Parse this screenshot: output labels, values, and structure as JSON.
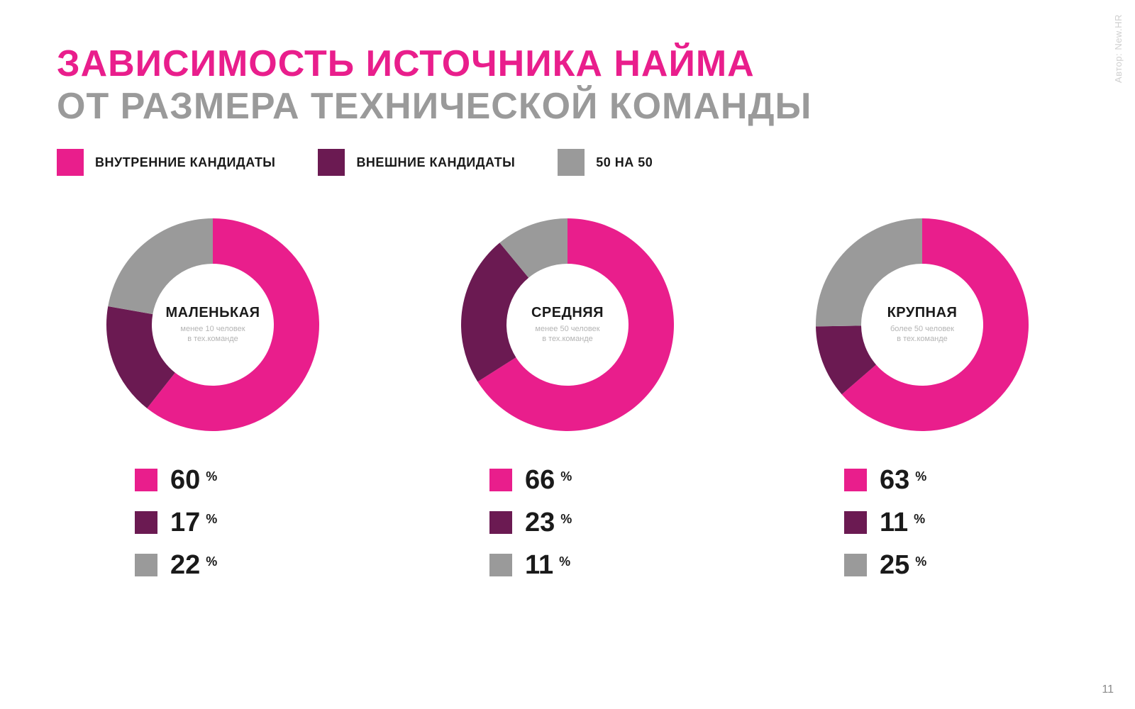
{
  "title": {
    "line1": "ЗАВИСИМОСТЬ ИСТОЧНИКА НАЙМА",
    "line2": "ОТ РАЗМЕРА ТЕХНИЧЕСКОЙ КОМАНДЫ",
    "line1_color": "#e91e8c",
    "line2_color": "#9a9a9a",
    "fontsize": 52,
    "fontweight": 900
  },
  "legend": {
    "items": [
      {
        "label": "ВНУТРЕННИЕ КАНДИДАТЫ",
        "color": "#e91e8c"
      },
      {
        "label": "ВНЕШНИЕ КАНДИДАТЫ",
        "color": "#6b1a52"
      },
      {
        "label": "50 НА 50",
        "color": "#9a9a9a"
      }
    ],
    "swatch_size": 38,
    "label_fontsize": 18,
    "label_color": "#1a1a1a"
  },
  "series_colors": [
    "#e91e8c",
    "#6b1a52",
    "#9a9a9a"
  ],
  "donut": {
    "outer_radius": 150,
    "inner_radius": 86,
    "start_angle_deg": -90,
    "background": "#ffffff",
    "title_fontsize": 20,
    "sub_fontsize": 11,
    "sub_color": "#b4b4b4"
  },
  "charts": [
    {
      "title": "МАЛЕНЬКАЯ",
      "subtitle_line1": "менее 10 человек",
      "subtitle_line2": "в тех.команде",
      "values": [
        60,
        17,
        22
      ]
    },
    {
      "title": "СРЕДНЯЯ",
      "subtitle_line1": "менее 50 человек",
      "subtitle_line2": "в тех.команде",
      "values": [
        66,
        23,
        11
      ]
    },
    {
      "title": "КРУПНАЯ",
      "subtitle_line1": "более 50 человек",
      "subtitle_line2": "в тех.команде",
      "values": [
        63,
        11,
        25
      ]
    }
  ],
  "stats": {
    "swatch_size": 32,
    "value_fontsize": 38,
    "pct_fontsize": 18,
    "pct_symbol": "%",
    "text_color": "#1a1a1a"
  },
  "page_number": "11",
  "side_credit": "Автор: New.HR",
  "background_color": "#ffffff"
}
